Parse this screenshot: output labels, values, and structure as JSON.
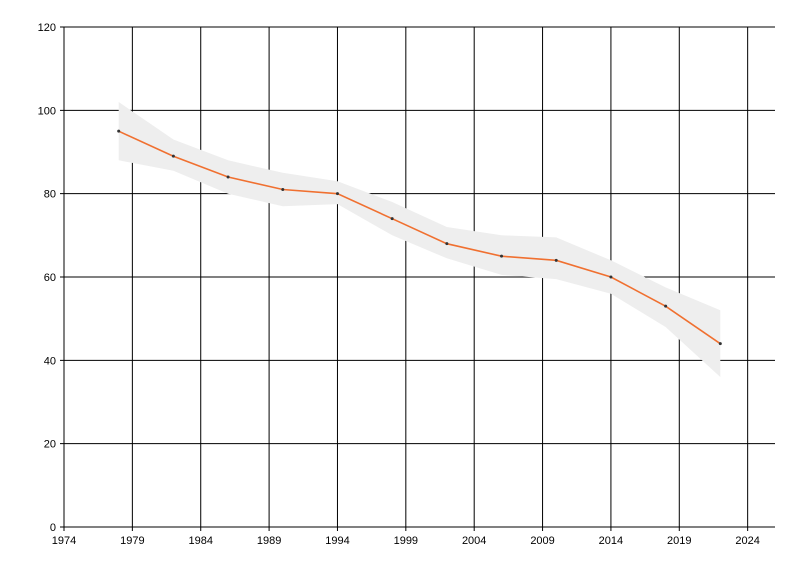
{
  "chart_data": {
    "type": "line",
    "title": "",
    "xlabel": "",
    "ylabel": "",
    "xlim": [
      1974,
      2026
    ],
    "ylim": [
      0,
      120
    ],
    "x_ticks": [
      1974,
      1979,
      1984,
      1989,
      1994,
      1999,
      2004,
      2009,
      2014,
      2019,
      2024
    ],
    "y_ticks": [
      0,
      20,
      40,
      60,
      80,
      100,
      120
    ],
    "grid": true,
    "legend": "none",
    "series": [
      {
        "x": [
          1978,
          1982,
          1986,
          1990,
          1994,
          1998,
          2002,
          2006,
          2010,
          2014,
          2018,
          2022
        ],
        "y": [
          95,
          89,
          84,
          81,
          80,
          74,
          68,
          65,
          64,
          60,
          53,
          44
        ],
        "lower": [
          88,
          85.5,
          80,
          77,
          77.5,
          70,
          64.5,
          60.5,
          59.5,
          56,
          48,
          36
        ],
        "upper": [
          102,
          93,
          88,
          85,
          83,
          78,
          72,
          70,
          69.5,
          64,
          57.5,
          52
        ],
        "color": "#f07030",
        "band_color": "#eeeeee"
      }
    ]
  }
}
